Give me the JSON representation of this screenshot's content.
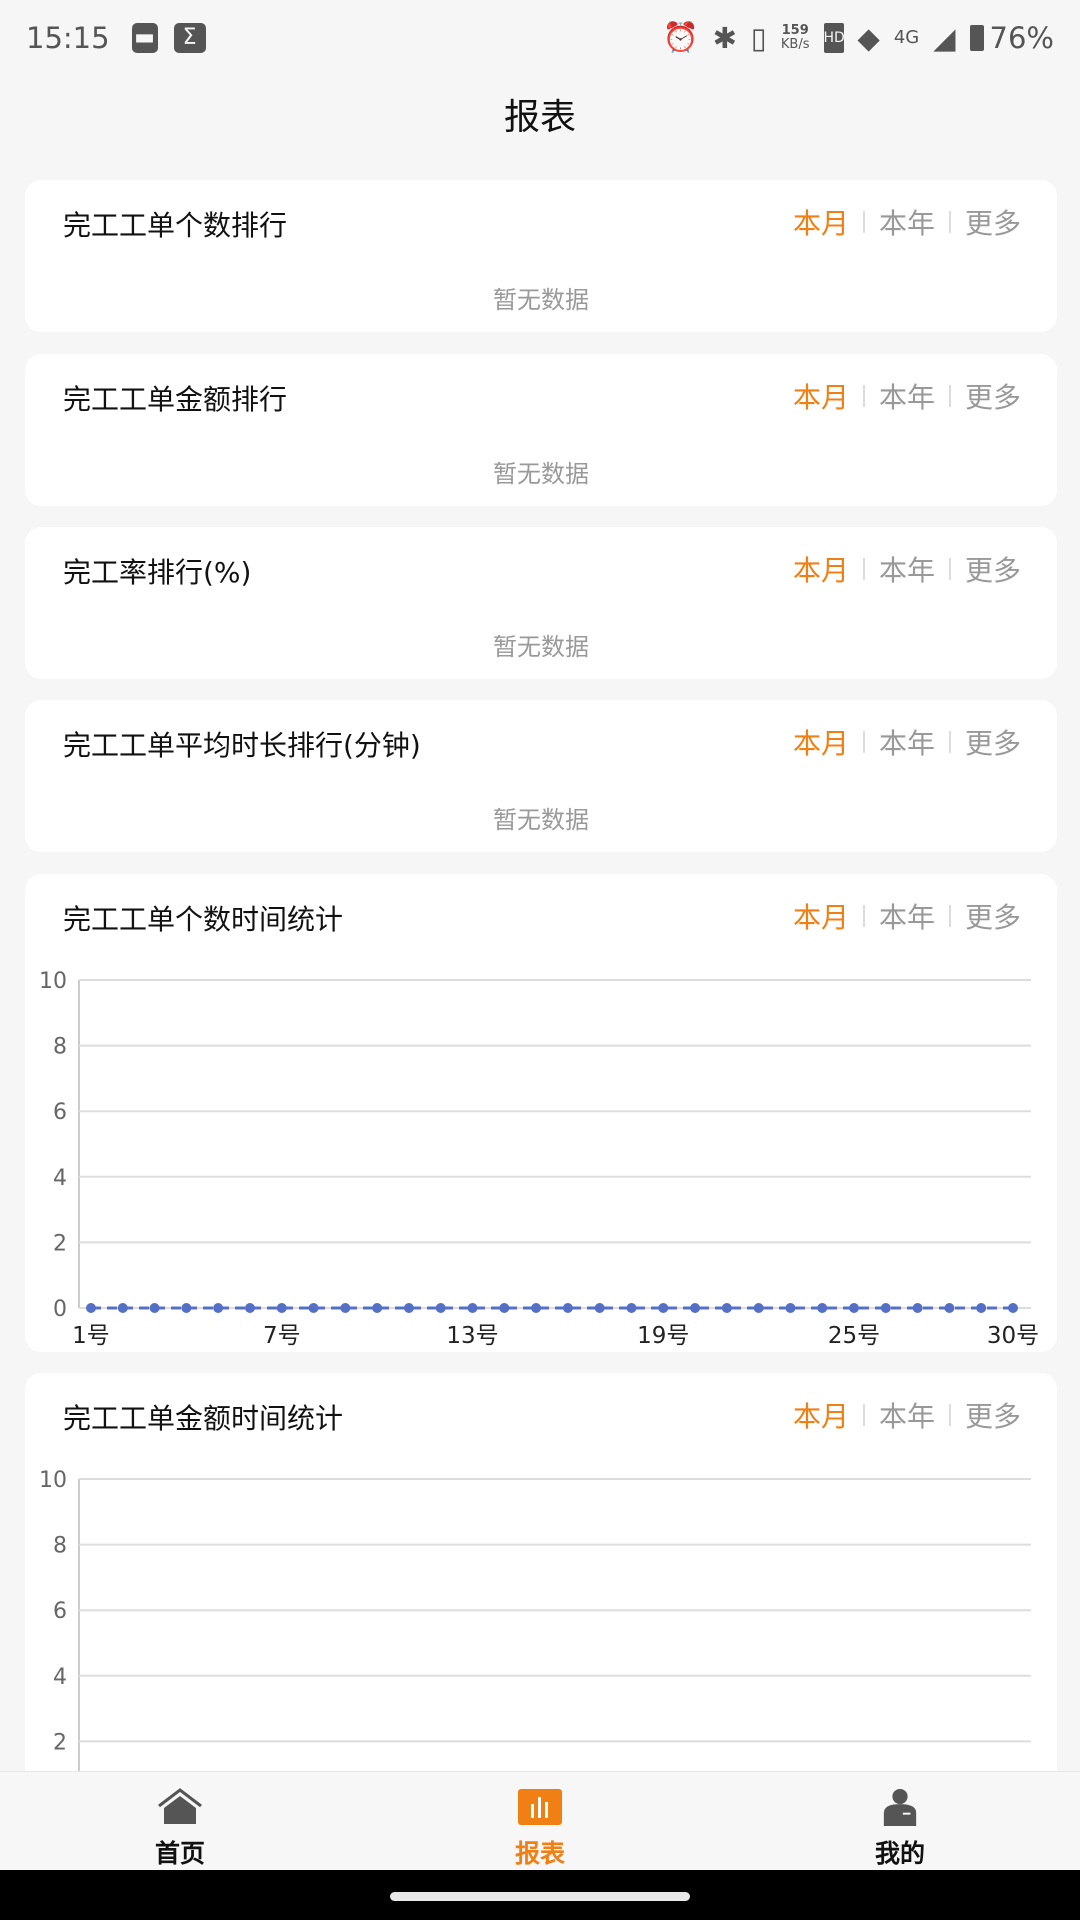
{
  "status_bar": {
    "time": "15:15",
    "net_speed": "159",
    "net_unit": "KB/s",
    "network": "4G",
    "battery": "76%"
  },
  "header": {
    "title": "报表"
  },
  "period_tabs": [
    "本月",
    "本年",
    "更多"
  ],
  "empty_text": "暂无数据",
  "cards": [
    {
      "title": "完工工单个数排行"
    },
    {
      "title": "完工工单金额排行"
    },
    {
      "title": "完工率排行(%)"
    },
    {
      "title": "完工工单平均时长排行(分钟)"
    },
    {
      "title": "完工工单个数时间统计"
    },
    {
      "title": "完工工单金额时间统计"
    }
  ],
  "chart_data": [
    {
      "type": "line",
      "title": "完工工单个数时间统计",
      "x": [
        1,
        2,
        3,
        4,
        5,
        6,
        7,
        8,
        9,
        10,
        11,
        12,
        13,
        14,
        15,
        16,
        17,
        18,
        19,
        20,
        21,
        22,
        23,
        24,
        25,
        26,
        27,
        28,
        29,
        30
      ],
      "x_tick_labels": [
        "1号",
        "7号",
        "13号",
        "19号",
        "25号",
        "30号"
      ],
      "y_tick_labels": [
        "0",
        "2",
        "4",
        "6",
        "8",
        "10"
      ],
      "ylim": [
        0,
        10
      ],
      "grid": true,
      "values": [
        0,
        0,
        0,
        0,
        0,
        0,
        0,
        0,
        0,
        0,
        0,
        0,
        0,
        0,
        0,
        0,
        0,
        0,
        0,
        0,
        0,
        0,
        0,
        0,
        0,
        0,
        0,
        0,
        0,
        0
      ],
      "color": "#5470c6"
    },
    {
      "type": "line",
      "title": "完工工单金额时间统计",
      "y_tick_labels": [
        "2",
        "4",
        "6",
        "8",
        "10"
      ],
      "ylim": [
        0,
        10
      ],
      "grid": true
    }
  ],
  "nav": [
    {
      "label": "首页",
      "icon": "home-icon"
    },
    {
      "label": "报表",
      "icon": "bar-chart-icon",
      "active": true
    },
    {
      "label": "我的",
      "icon": "user-icon"
    }
  ],
  "colors": {
    "accent": "#f07f14",
    "series": "#5470c6"
  }
}
